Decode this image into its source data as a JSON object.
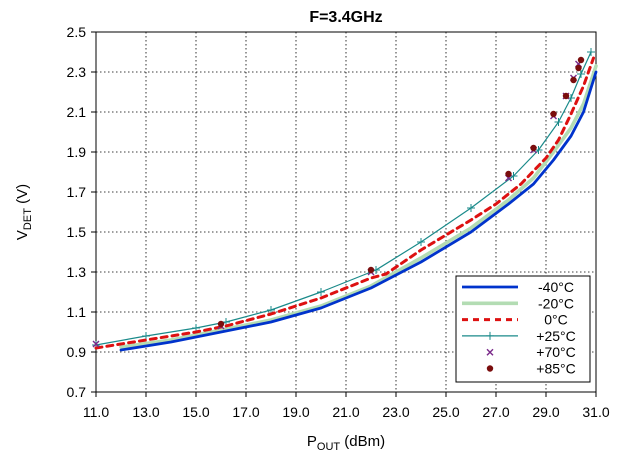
{
  "chart_data": {
    "type": "line",
    "title": "F=3.4GHz",
    "xlabel": {
      "main": "P",
      "sub": "OUT",
      "unit": " (dBm)"
    },
    "ylabel": {
      "main": "V",
      "sub": "DET",
      "unit": " (V)"
    },
    "xlim": [
      11.0,
      31.0
    ],
    "ylim": [
      0.7,
      2.5
    ],
    "xticks": [
      "11.0",
      "13.0",
      "15.0",
      "17.0",
      "19.0",
      "21.0",
      "23.0",
      "25.0",
      "27.0",
      "29.0",
      "31.0"
    ],
    "yticks": [
      "0.7",
      "0.9",
      "1.1",
      "1.3",
      "1.5",
      "1.7",
      "1.9",
      "2.1",
      "2.3",
      "2.5"
    ],
    "grid": true,
    "legend_position": "bottom-right",
    "colors": {
      "m40": "#0033cc",
      "m20": "#b3dcb3",
      "z0": "#dd1111",
      "p25": "#1a8a8a",
      "p70": "#7a2a8a",
      "p85": "#7a0d0d"
    },
    "series": [
      {
        "name": "-40°C",
        "key": "m40",
        "style": "solid-thick",
        "x": [
          12.0,
          14.0,
          16.0,
          18.0,
          20.0,
          22.0,
          24.0,
          26.0,
          27.5,
          28.5,
          29.3,
          30.0,
          30.5,
          31.0
        ],
        "y": [
          0.91,
          0.95,
          1.0,
          1.05,
          1.12,
          1.22,
          1.35,
          1.5,
          1.64,
          1.74,
          1.86,
          1.98,
          2.1,
          2.3
        ]
      },
      {
        "name": "-20°C",
        "key": "m20",
        "style": "solid-light",
        "x": [
          12.0,
          14.0,
          16.0,
          18.0,
          20.0,
          22.0,
          24.0,
          26.0,
          27.5,
          28.5,
          29.3,
          30.0,
          30.5,
          31.0
        ],
        "y": [
          0.925,
          0.96,
          1.01,
          1.06,
          1.13,
          1.23,
          1.37,
          1.52,
          1.66,
          1.77,
          1.9,
          2.02,
          2.14,
          2.33
        ]
      },
      {
        "name": "0°C",
        "key": "z0",
        "style": "dashed",
        "x": [
          11.0,
          13.0,
          15.0,
          16.2,
          18.0,
          20.0,
          22.0,
          22.6,
          24.0,
          26.0,
          27.0,
          28.0,
          29.0,
          29.5,
          30.0,
          30.5,
          30.9
        ],
        "y": [
          0.92,
          0.96,
          1.0,
          1.03,
          1.09,
          1.17,
          1.27,
          1.29,
          1.41,
          1.56,
          1.64,
          1.74,
          1.87,
          1.96,
          2.09,
          2.23,
          2.37
        ]
      },
      {
        "name": "+25°C",
        "key": "p25",
        "style": "line-plus",
        "x": [
          11.0,
          13.0,
          15.0,
          16.2,
          18.0,
          20.0,
          22.2,
          24.0,
          26.0,
          27.7,
          28.7,
          29.5,
          30.0,
          30.4,
          30.8
        ],
        "y": [
          0.935,
          0.98,
          1.02,
          1.05,
          1.11,
          1.2,
          1.31,
          1.45,
          1.62,
          1.78,
          1.91,
          2.05,
          2.17,
          2.29,
          2.4
        ]
      },
      {
        "name": "+70°C",
        "key": "p70",
        "style": "marker-x",
        "x": [
          11.0,
          16.0,
          22.0,
          27.5,
          28.5,
          29.3,
          29.8,
          30.1,
          30.3
        ],
        "y": [
          0.94,
          1.03,
          1.3,
          1.77,
          1.91,
          2.08,
          2.18,
          2.27,
          2.34
        ]
      },
      {
        "name": "+85°C",
        "key": "p85",
        "style": "marker-dot",
        "x": [
          16.0,
          22.0,
          27.5,
          28.5,
          29.3,
          29.8,
          30.1,
          30.3,
          30.4
        ],
        "y": [
          1.04,
          1.31,
          1.79,
          1.92,
          2.09,
          2.18,
          2.26,
          2.32,
          2.36
        ]
      }
    ]
  }
}
